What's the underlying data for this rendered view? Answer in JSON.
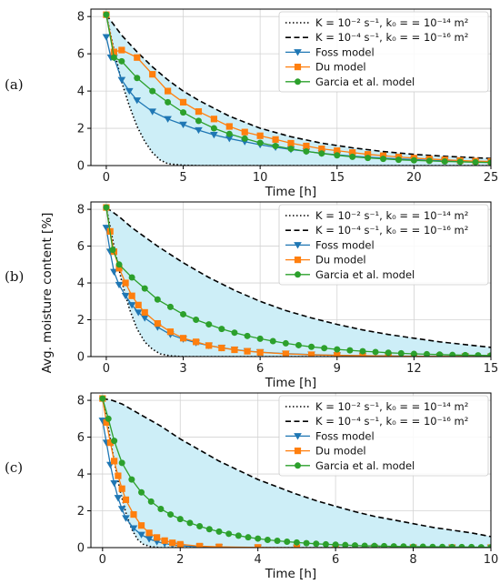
{
  "figure": {
    "shared_ylabel": "Avg. moisture content [%]",
    "xlabel": "Time [h]"
  },
  "legend": [
    {
      "key": "fastest",
      "text": "K = 10⁻² s⁻¹, k₀ = = 10⁻¹⁴ m²",
      "style": "dotted",
      "color": "#000000"
    },
    {
      "key": "slowest",
      "text": "K = 10⁻⁴ s⁻¹, k₀ = = 10⁻¹⁶ m²",
      "style": "dashed",
      "color": "#000000"
    },
    {
      "key": "foss",
      "text": "Foss model",
      "style": "triangle",
      "color": "#1f77b4"
    },
    {
      "key": "du",
      "text": "Du model",
      "style": "square",
      "color": "#ff7f0e"
    },
    {
      "key": "garcia",
      "text": "Garcia et al. model",
      "style": "circle",
      "color": "#2ca02c"
    }
  ],
  "colors": {
    "band_fill": "#cdeef7",
    "grid": "#d3d3d3",
    "foss": "#1f77b4",
    "du": "#ff7f0e",
    "garcia": "#2ca02c"
  },
  "chart_data": [
    {
      "panel_label": "(a)",
      "type": "line",
      "xlabel": "Time [h]",
      "ylabel": "Avg. moisture content [%]",
      "xlim": [
        -1,
        25
      ],
      "ylim": [
        0,
        8.4
      ],
      "xticks": [
        0,
        5,
        10,
        15,
        20,
        25
      ],
      "yticks": [
        0,
        2,
        4,
        6,
        8
      ],
      "grid": true,
      "legend_position": "top-right",
      "shaded_band": "between fastest and slowest curves",
      "series": [
        {
          "name": "K = 10⁻² s⁻¹, k₀ = = 10⁻¹⁴ m²",
          "key": "fastest",
          "x": [
            0,
            0.5,
            1,
            1.5,
            2,
            2.5,
            3,
            3.5,
            4,
            5,
            6,
            25
          ],
          "y": [
            8.1,
            6.2,
            4.5,
            3.2,
            2.1,
            1.3,
            0.7,
            0.3,
            0.1,
            0.02,
            0,
            0
          ]
        },
        {
          "name": "K = 10⁻⁴ s⁻¹, k₀ = = 10⁻¹⁶ m²",
          "key": "slowest",
          "x": [
            0,
            1,
            2,
            3,
            4,
            5,
            6,
            8,
            10,
            12,
            14,
            16,
            18,
            20,
            22,
            25
          ],
          "y": [
            8.1,
            7.0,
            6.1,
            5.3,
            4.6,
            4.0,
            3.5,
            2.65,
            2.0,
            1.55,
            1.2,
            0.95,
            0.75,
            0.6,
            0.5,
            0.38
          ]
        },
        {
          "name": "Foss model",
          "key": "foss",
          "x": [
            0,
            0.3,
            0.5,
            1,
            1.5,
            2,
            3,
            4,
            5,
            6,
            7,
            8,
            9,
            10,
            11,
            12,
            13,
            14,
            15,
            16,
            17,
            18,
            19,
            20,
            21,
            22,
            23,
            24,
            25
          ],
          "y": [
            6.9,
            5.8,
            5.8,
            4.6,
            4.0,
            3.5,
            2.9,
            2.5,
            2.2,
            1.9,
            1.65,
            1.45,
            1.28,
            1.12,
            0.98,
            0.86,
            0.76,
            0.66,
            0.58,
            0.51,
            0.45,
            0.4,
            0.36,
            0.32,
            0.28,
            0.25,
            0.23,
            0.2,
            0.18
          ]
        },
        {
          "name": "Du model",
          "key": "du",
          "x": [
            0,
            0.5,
            1,
            2,
            3,
            4,
            5,
            6,
            7,
            8,
            9,
            10,
            11,
            12,
            13,
            14,
            15,
            16,
            17,
            18,
            19,
            20,
            21,
            22,
            23,
            24,
            25
          ],
          "y": [
            8.1,
            6.1,
            6.2,
            5.8,
            4.9,
            4.0,
            3.4,
            2.9,
            2.5,
            2.1,
            1.8,
            1.6,
            1.4,
            1.2,
            1.05,
            0.9,
            0.8,
            0.7,
            0.6,
            0.53,
            0.46,
            0.4,
            0.35,
            0.31,
            0.27,
            0.24,
            0.22
          ]
        },
        {
          "name": "Garcia et al. model",
          "key": "garcia",
          "x": [
            0,
            0.5,
            1,
            2,
            3,
            4,
            5,
            6,
            7,
            8,
            9,
            10,
            11,
            12,
            13,
            14,
            15,
            16,
            17,
            18,
            19,
            20,
            21,
            22,
            23,
            24,
            25
          ],
          "y": [
            8.1,
            5.8,
            5.6,
            4.7,
            4.0,
            3.4,
            2.85,
            2.4,
            2.0,
            1.7,
            1.45,
            1.22,
            1.05,
            0.9,
            0.76,
            0.65,
            0.55,
            0.47,
            0.41,
            0.36,
            0.31,
            0.28,
            0.25,
            0.22,
            0.2,
            0.18,
            0.16
          ]
        }
      ]
    },
    {
      "panel_label": "(b)",
      "type": "line",
      "xlabel": "Time [h]",
      "ylabel": "Avg. moisture content [%]",
      "xlim": [
        -0.6,
        15
      ],
      "ylim": [
        0,
        8.4
      ],
      "xticks": [
        0,
        3,
        6,
        9,
        12,
        15
      ],
      "yticks": [
        0,
        2,
        4,
        6,
        8
      ],
      "grid": true,
      "legend_position": "top-right",
      "shaded_band": "between fastest and slowest curves",
      "series": [
        {
          "name": "K = 10⁻² s⁻¹, k₀ = = 10⁻¹⁴ m²",
          "key": "fastest",
          "x": [
            0,
            0.3,
            0.6,
            0.9,
            1.2,
            1.5,
            1.8,
            2.1,
            2.5,
            3,
            15
          ],
          "y": [
            8.1,
            6.0,
            4.1,
            2.6,
            1.5,
            0.8,
            0.4,
            0.15,
            0.04,
            0,
            0
          ]
        },
        {
          "name": "K = 10⁻⁴ s⁻¹, k₀ = = 10⁻¹⁶ m²",
          "key": "slowest",
          "x": [
            0,
            0.5,
            1,
            2,
            3,
            4,
            5,
            6,
            7,
            8,
            9,
            10,
            11,
            12,
            13,
            14,
            15
          ],
          "y": [
            8.1,
            7.6,
            7.0,
            6.0,
            5.1,
            4.3,
            3.6,
            3.0,
            2.5,
            2.1,
            1.75,
            1.45,
            1.2,
            1.0,
            0.8,
            0.65,
            0.5
          ]
        },
        {
          "name": "Foss model",
          "key": "foss",
          "x": [
            0,
            0.15,
            0.3,
            0.5,
            0.75,
            1,
            1.25,
            1.5,
            2,
            2.5,
            3,
            3.5,
            4,
            4.5,
            5,
            5.5,
            6,
            7,
            8,
            9,
            10,
            11,
            12,
            13,
            14,
            15
          ],
          "y": [
            7.0,
            5.7,
            4.6,
            3.9,
            3.3,
            2.8,
            2.4,
            2.1,
            1.6,
            1.2,
            0.95,
            0.75,
            0.6,
            0.48,
            0.38,
            0.3,
            0.24,
            0.16,
            0.11,
            0.07,
            0.05,
            0.03,
            0.02,
            0.01,
            0.01,
            0.0
          ]
        },
        {
          "name": "Du model",
          "key": "du",
          "x": [
            0,
            0.15,
            0.3,
            0.5,
            0.75,
            1,
            1.25,
            1.5,
            2,
            2.5,
            3,
            3.5,
            4,
            4.5,
            5,
            5.5,
            6,
            7,
            8,
            9,
            10,
            11,
            12,
            13,
            14,
            15
          ],
          "y": [
            8.1,
            6.8,
            5.7,
            4.8,
            4.0,
            3.3,
            2.8,
            2.4,
            1.8,
            1.35,
            1.0,
            0.8,
            0.6,
            0.47,
            0.37,
            0.29,
            0.23,
            0.15,
            0.1,
            0.07,
            0.05,
            0.03,
            0.02,
            0.01,
            0.01,
            0.0
          ]
        },
        {
          "name": "Garcia et al. model",
          "key": "garcia",
          "x": [
            0,
            0.25,
            0.5,
            1,
            1.5,
            2,
            2.5,
            3,
            3.5,
            4,
            4.5,
            5,
            5.5,
            6,
            6.5,
            7,
            7.5,
            8,
            8.5,
            9,
            9.5,
            10,
            10.5,
            11,
            11.5,
            12,
            12.5,
            13,
            13.5,
            14,
            14.5,
            15
          ],
          "y": [
            8.1,
            5.8,
            5.0,
            4.3,
            3.7,
            3.1,
            2.7,
            2.3,
            2.0,
            1.75,
            1.5,
            1.3,
            1.12,
            0.97,
            0.84,
            0.72,
            0.62,
            0.53,
            0.46,
            0.39,
            0.34,
            0.29,
            0.25,
            0.21,
            0.18,
            0.15,
            0.13,
            0.11,
            0.09,
            0.08,
            0.07,
            0.06
          ]
        }
      ]
    },
    {
      "panel_label": "(c)",
      "type": "line",
      "xlabel": "Time [h]",
      "ylabel": "Avg. moisture content [%]",
      "xlim": [
        -0.3,
        10
      ],
      "ylim": [
        0,
        8.4
      ],
      "xticks": [
        0,
        2,
        4,
        6,
        8,
        10
      ],
      "yticks": [
        0,
        2,
        4,
        6,
        8
      ],
      "grid": true,
      "legend_position": "top-right",
      "shaded_band": "between fastest and slowest curves",
      "series": [
        {
          "name": "K = 10⁻² s⁻¹, k₀ = = 10⁻¹⁴ m²",
          "key": "fastest",
          "x": [
            0,
            0.15,
            0.3,
            0.45,
            0.6,
            0.75,
            0.9,
            1.05,
            1.25,
            1.5,
            10
          ],
          "y": [
            8.1,
            6.5,
            4.7,
            3.1,
            1.9,
            1.0,
            0.45,
            0.18,
            0.05,
            0,
            0
          ]
        },
        {
          "name": "K = 10⁻⁴ s⁻¹, k₀ = = 10⁻¹⁶ m²",
          "key": "slowest",
          "x": [
            0,
            0.25,
            0.5,
            1,
            1.5,
            2,
            2.5,
            3,
            3.5,
            4,
            4.5,
            5,
            5.5,
            6,
            6.5,
            7,
            7.5,
            8,
            8.5,
            9,
            9.5,
            10
          ],
          "y": [
            8.1,
            8.0,
            7.8,
            7.2,
            6.6,
            5.9,
            5.3,
            4.7,
            4.2,
            3.7,
            3.3,
            2.9,
            2.55,
            2.25,
            1.95,
            1.7,
            1.5,
            1.3,
            1.1,
            0.95,
            0.8,
            0.6
          ]
        },
        {
          "name": "Foss model",
          "key": "foss",
          "x": [
            0,
            0.1,
            0.2,
            0.3,
            0.4,
            0.5,
            0.6,
            0.8,
            1,
            1.2,
            1.4,
            1.6,
            1.8,
            2,
            2.5,
            3,
            4,
            5,
            6,
            7,
            8,
            9,
            10
          ],
          "y": [
            6.9,
            5.7,
            4.5,
            3.5,
            2.7,
            2.1,
            1.6,
            1.05,
            0.7,
            0.47,
            0.32,
            0.22,
            0.15,
            0.1,
            0.05,
            0.02,
            0.0,
            0,
            0,
            0,
            0,
            0,
            0
          ]
        },
        {
          "name": "Du model",
          "key": "du",
          "x": [
            0,
            0.1,
            0.2,
            0.3,
            0.4,
            0.5,
            0.6,
            0.8,
            1,
            1.2,
            1.4,
            1.6,
            1.8,
            2,
            2.5,
            3,
            4,
            5,
            6,
            7,
            8,
            9,
            10
          ],
          "y": [
            8.1,
            6.8,
            5.7,
            4.7,
            3.9,
            3.2,
            2.6,
            1.8,
            1.2,
            0.8,
            0.55,
            0.38,
            0.26,
            0.18,
            0.08,
            0.04,
            0.01,
            0,
            0,
            0,
            0,
            0,
            0
          ]
        },
        {
          "name": "Garcia et al. model",
          "key": "garcia",
          "x": [
            0,
            0.15,
            0.3,
            0.5,
            0.75,
            1,
            1.25,
            1.5,
            1.75,
            2,
            2.25,
            2.5,
            2.75,
            3,
            3.25,
            3.5,
            3.75,
            4,
            4.25,
            4.5,
            4.75,
            5,
            5.25,
            5.5,
            5.75,
            6,
            6.25,
            6.5,
            6.75,
            7,
            7.25,
            7.5,
            7.75,
            8,
            8.25,
            8.5,
            8.75,
            9,
            9.25,
            9.5,
            9.75,
            10
          ],
          "y": [
            8.1,
            7.0,
            5.8,
            4.6,
            3.7,
            3.0,
            2.5,
            2.1,
            1.8,
            1.55,
            1.34,
            1.16,
            1.0,
            0.87,
            0.75,
            0.65,
            0.56,
            0.49,
            0.42,
            0.37,
            0.32,
            0.28,
            0.24,
            0.21,
            0.18,
            0.16,
            0.14,
            0.12,
            0.1,
            0.09,
            0.08,
            0.07,
            0.06,
            0.05,
            0.05,
            0.04,
            0.04,
            0.03,
            0.03,
            0.03,
            0.02,
            0.02
          ]
        }
      ]
    }
  ]
}
